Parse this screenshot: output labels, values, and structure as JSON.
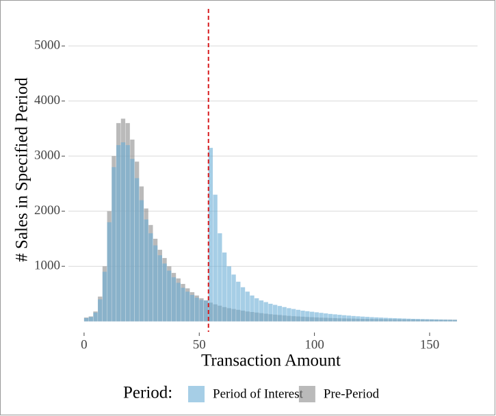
{
  "chart_data": {
    "type": "histogram",
    "x_label": "Transaction Amount",
    "y_label": "# Sales in Specified Period",
    "legend_title": "Period:",
    "legend": "bottom",
    "grid": true,
    "vline": 54,
    "vline_color": "#d7191c",
    "bins": [
      0,
      2,
      4,
      6,
      8,
      10,
      12,
      14,
      16,
      18,
      20,
      22,
      24,
      26,
      28,
      30,
      32,
      34,
      36,
      38,
      40,
      42,
      44,
      46,
      48,
      50,
      52,
      54,
      56,
      58,
      60,
      62,
      64,
      66,
      68,
      70,
      72,
      74,
      76,
      78,
      80,
      82,
      84,
      86,
      88,
      90,
      92,
      94,
      96,
      98,
      100,
      102,
      104,
      106,
      108,
      110,
      112,
      114,
      116,
      118,
      120,
      122,
      124,
      126,
      128,
      130,
      132,
      134,
      136,
      138,
      140,
      142,
      144,
      146,
      148,
      150,
      152,
      154,
      156,
      158,
      160,
      162
    ],
    "series": [
      {
        "name": "Pre-Period",
        "color": "#8c8c8c",
        "values": [
          70,
          90,
          180,
          450,
          1000,
          2000,
          3000,
          3600,
          3680,
          3600,
          3300,
          2900,
          2450,
          2050,
          1750,
          1500,
          1300,
          1150,
          1000,
          880,
          780,
          680,
          600,
          530,
          470,
          420,
          380,
          340,
          310,
          285,
          260,
          240,
          225,
          210,
          195,
          180,
          170,
          160,
          150,
          140,
          130,
          122,
          115,
          108,
          100,
          95,
          90,
          85,
          80,
          76,
          72,
          68,
          65,
          62,
          59,
          56,
          54,
          52,
          50,
          48,
          46,
          45,
          44,
          43,
          42,
          41,
          40,
          39,
          38,
          37,
          36,
          35,
          34,
          34,
          33,
          33,
          32,
          32,
          31,
          31,
          30
        ]
      },
      {
        "name": "Period of Interest",
        "color": "#6baed6",
        "values": [
          60,
          80,
          160,
          400,
          900,
          1800,
          2800,
          3200,
          3250,
          3200,
          2950,
          2600,
          2200,
          1850,
          1600,
          1380,
          1200,
          1050,
          920,
          800,
          700,
          610,
          540,
          480,
          430,
          390,
          380,
          3150,
          2300,
          1600,
          1250,
          1000,
          850,
          720,
          620,
          540,
          470,
          420,
          380,
          350,
          320,
          300,
          280,
          260,
          240,
          225,
          210,
          195,
          185,
          175,
          165,
          155,
          145,
          135,
          128,
          120,
          112,
          105,
          98,
          92,
          87,
          82,
          77,
          73,
          69,
          65,
          61,
          58,
          55,
          52,
          49,
          46,
          44,
          42,
          40,
          38,
          36,
          34,
          32,
          30,
          28
        ]
      }
    ],
    "xlim": [
      -6.8,
      170.8
    ],
    "xticks": [
      0,
      50,
      100,
      150
    ],
    "ylim": [
      -190,
      5710
    ],
    "yticks": [
      1000,
      2000,
      3000,
      4000,
      5000
    ]
  }
}
